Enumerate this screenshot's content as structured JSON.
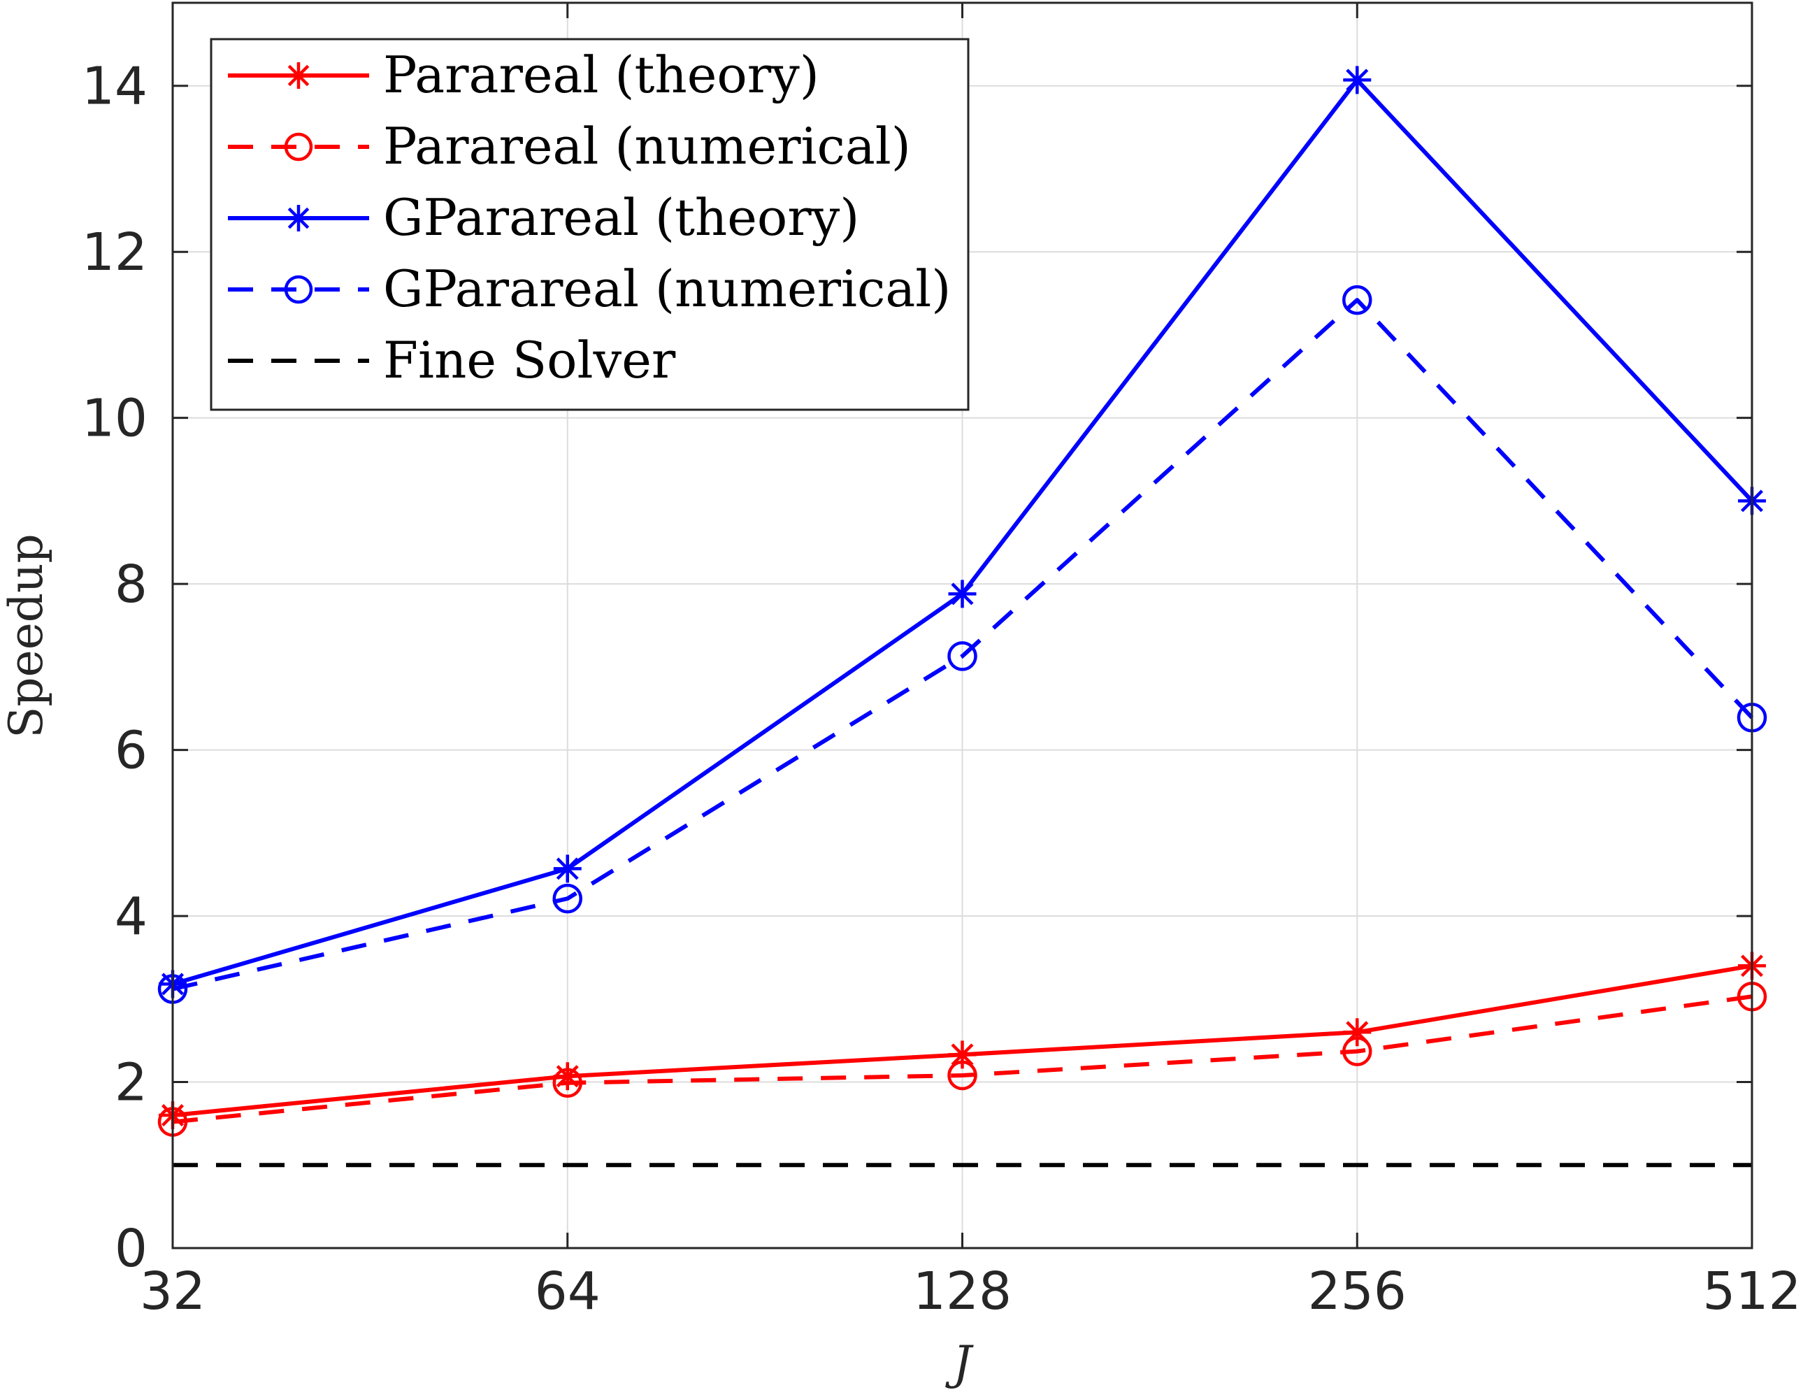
{
  "chart_data": {
    "type": "line",
    "xlabel": "J",
    "ylabel": "Speedup",
    "x": [
      32,
      64,
      128,
      256,
      512
    ],
    "x_scale": "log2",
    "xlim": [
      32,
      512
    ],
    "ylim": [
      0,
      15
    ],
    "xticks": [
      "32",
      "64",
      "128",
      "256",
      "512"
    ],
    "yticks": [
      "0",
      "2",
      "4",
      "6",
      "8",
      "10",
      "12",
      "14"
    ],
    "grid": true,
    "legend_position": "top-left",
    "series": [
      {
        "name": "Parareal (theory)",
        "values": [
          1.6,
          2.07,
          2.33,
          2.6,
          3.4
        ],
        "color": "#ff0000",
        "line": "solid",
        "marker": "asterisk"
      },
      {
        "name": "Parareal (numerical)",
        "values": [
          1.52,
          1.99,
          2.08,
          2.37,
          3.03
        ],
        "color": "#ff0000",
        "line": "dashed",
        "marker": "circle"
      },
      {
        "name": "GParareal (theory)",
        "values": [
          3.18,
          4.57,
          7.88,
          14.07,
          9.0
        ],
        "color": "#0000ff",
        "line": "solid",
        "marker": "asterisk"
      },
      {
        "name": "GParareal (numerical)",
        "values": [
          3.12,
          4.21,
          7.13,
          11.42,
          6.39
        ],
        "color": "#0000ff",
        "line": "dashed",
        "marker": "circle"
      },
      {
        "name": "Fine Solver",
        "values": [
          1,
          1,
          1,
          1,
          1
        ],
        "color": "#000000",
        "line": "dashed",
        "marker": "none"
      }
    ]
  }
}
